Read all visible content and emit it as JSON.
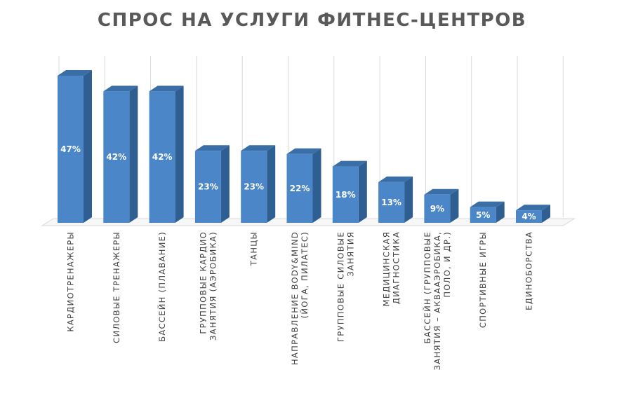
{
  "chart_data": {
    "type": "bar",
    "title": "СПРОС НА УСЛУГИ ФИТНЕС-ЦЕНТРОВ",
    "xlabel": "",
    "ylabel": "",
    "categories": [
      [
        "КАРДИОТРЕНАЖЕРЫ"
      ],
      [
        "СИЛОВЫЕ ТРЕНАЖЕРЫ"
      ],
      [
        "БАССЕЙН (ПЛАВАНИЕ)"
      ],
      [
        "ГРУППОВЫЕ КАРДИО",
        "ЗАНЯТИЯ (АЭРОБИКА)"
      ],
      [
        "ТАНЦЫ"
      ],
      [
        "НАПРАВЛЕНИЕ BODY&MIND",
        "(ЙОГА, ПИЛАТЕС)"
      ],
      [
        "ГРУППОВЫЕ СИЛОВЫЕ",
        "ЗАНЯТИЯ"
      ],
      [
        "МЕДИЦИНСКАЯ",
        "ДИАГНОСТИКА"
      ],
      [
        "БАССЕЙН (ГРУППОВЫЕ",
        "ЗАНЯТИЯ – АКВААЭРОБИКА,",
        "ПОЛО, И ДР.)"
      ],
      [
        "СПОРТИВНЫЕ ИГРЫ"
      ],
      [
        "ЕДИНОБОРСТВА"
      ]
    ],
    "values": [
      47,
      42,
      42,
      23,
      23,
      22,
      18,
      13,
      9,
      5,
      4
    ],
    "value_labels": [
      "47%",
      "42%",
      "42%",
      "23%",
      "23%",
      "22%",
      "18%",
      "13%",
      "9%",
      "5%",
      "4%"
    ],
    "ylim": [
      0,
      50
    ],
    "grid": true,
    "legend": "none",
    "colors": {
      "bar_front": "#4a86c8",
      "bar_side": "#2f5f92",
      "bar_top": "#3a6ea6",
      "grid": "#d9d9d9"
    }
  }
}
